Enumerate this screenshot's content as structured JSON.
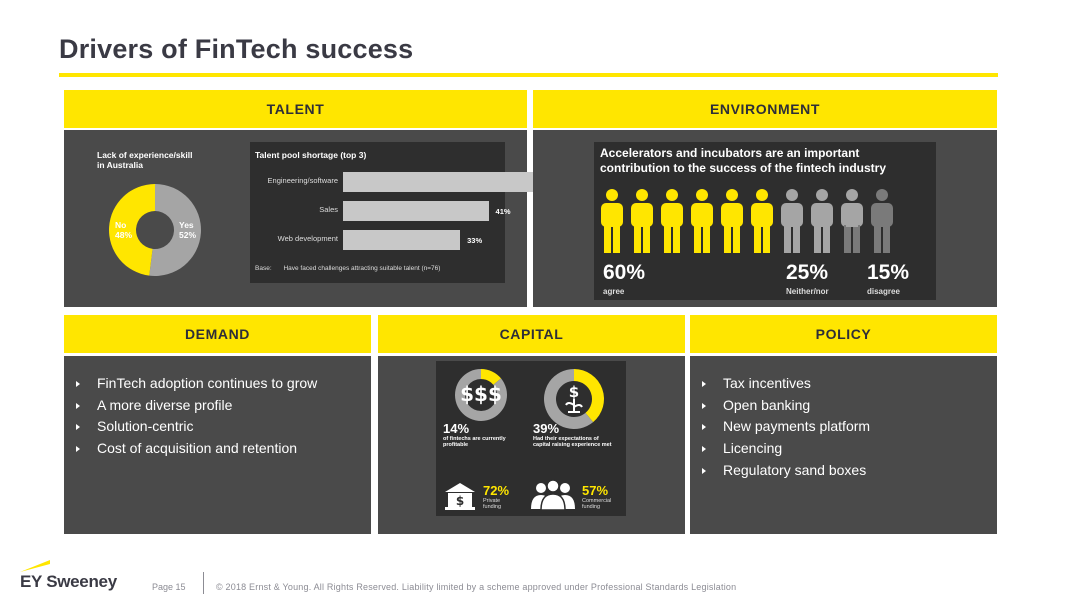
{
  "title": "Drivers of FinTech success",
  "colors": {
    "accent": "#ffe600",
    "panel": "#4a4a4a",
    "inner": "#2e2e2e",
    "grey_figure": "#a5a5a5"
  },
  "sections": {
    "talent": "TALENT",
    "environment": "ENVIRONMENT",
    "demand": "DEMAND",
    "capital": "CAPITAL",
    "policy": "POLICY"
  },
  "talent": {
    "donut": {
      "title_line1": "Lack of experience/skill",
      "title_line2": "in Australia",
      "no_label": "No",
      "no_value": "48%",
      "yes_label": "Yes",
      "yes_value": "52%"
    },
    "bars": {
      "title": "Talent pool shortage (top 3)",
      "items": [
        {
          "label": "Engineering/software",
          "value": "61%"
        },
        {
          "label": "Sales",
          "value": "41%"
        },
        {
          "label": "Web development",
          "value": "33%"
        }
      ],
      "base_label": "Base:",
      "base_text": "Have faced challenges attracting suitable talent (n=76)"
    }
  },
  "chart_data": [
    {
      "type": "pie",
      "title": "Lack of experience/skill in Australia",
      "categories": [
        "Yes",
        "No"
      ],
      "values": [
        52,
        48
      ]
    },
    {
      "type": "bar",
      "title": "Talent pool shortage (top 3)",
      "categories": [
        "Engineering/software",
        "Sales",
        "Web development"
      ],
      "values": [
        61,
        41,
        33
      ]
    }
  ],
  "environment": {
    "heading_line1": "Accelerators and incubators are an important",
    "heading_line2": "contribution to the success of the fintech industry",
    "stats": [
      {
        "value": "60%",
        "label": "agree"
      },
      {
        "value": "25%",
        "label": "Neither/nor"
      },
      {
        "value": "15%",
        "label": "disagree"
      }
    ],
    "figures": {
      "agree": 6,
      "neither": 2.5,
      "disagree": 1.5
    }
  },
  "demand": {
    "items": [
      "FinTech adoption continues to grow",
      "A more diverse profile",
      "Solution-centric",
      "Cost of acquisition and retention"
    ]
  },
  "capital": {
    "profitable": {
      "value": "14%",
      "label_line1": "of fintechs are currently",
      "label_line2": "profitable",
      "fraction": 0.14
    },
    "expectations": {
      "value": "39%",
      "label_line1": "Had their expectations of",
      "label_line2": "capital raising experience met",
      "fraction": 0.39
    },
    "private": {
      "value": "72%",
      "label_line1": "Private",
      "label_line2": "funding"
    },
    "commercial": {
      "value": "57%",
      "label_line1": "Commercial",
      "label_line2": "funding"
    }
  },
  "policy": {
    "items": [
      "Tax incentives",
      "Open banking",
      "New payments platform",
      "Licencing",
      "Regulatory sand boxes"
    ]
  },
  "footer": {
    "logo": "EY Sweeney",
    "page": "Page 15",
    "copyright": "© 2018 Ernst & Young. All Rights Reserved. Liability limited by a scheme approved under Professional Standards Legislation"
  }
}
